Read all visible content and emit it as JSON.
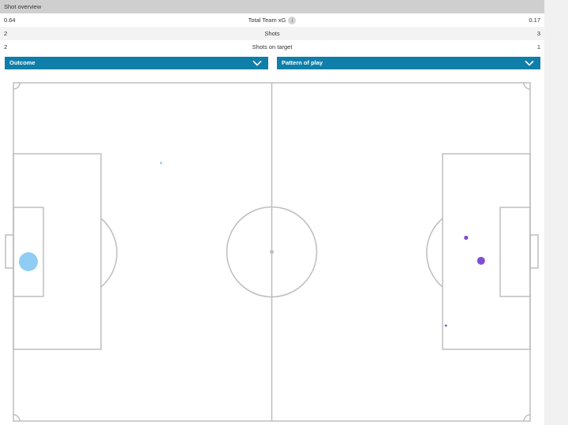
{
  "header": {
    "title": "Shot overview"
  },
  "stats": [
    {
      "left": "0.64",
      "label": "Total Team xG",
      "right": "0.17",
      "info_icon": "info-icon"
    },
    {
      "left": "2",
      "label": "Shots",
      "right": "3"
    },
    {
      "left": "2",
      "label": "Shots on target",
      "right": "1"
    }
  ],
  "filters": {
    "outcome_label": "Outcome",
    "pattern_label": "Pattern of play",
    "chevron_icon": "chevron-down-icon"
  },
  "colors": {
    "header_bg": "#cfcfcf",
    "dropdown_bg": "#0f7ea9",
    "pitch_lines": "#bdbdbd",
    "team_left_shot": "#90cdf4",
    "team_right_shot": "#7e4fd6"
  },
  "shots": [
    {
      "team": "left",
      "pitch_x": 0.029,
      "pitch_y": 0.529,
      "xg_size": "large"
    },
    {
      "team": "left",
      "pitch_x": 0.286,
      "pitch_y": 0.237,
      "xg_size": "tiny"
    },
    {
      "team": "right",
      "pitch_x": 0.876,
      "pitch_y": 0.458,
      "xg_size": "small"
    },
    {
      "team": "right",
      "pitch_x": 0.905,
      "pitch_y": 0.526,
      "xg_size": "medium"
    },
    {
      "team": "right",
      "pitch_x": 0.837,
      "pitch_y": 0.718,
      "xg_size": "tiny"
    }
  ]
}
